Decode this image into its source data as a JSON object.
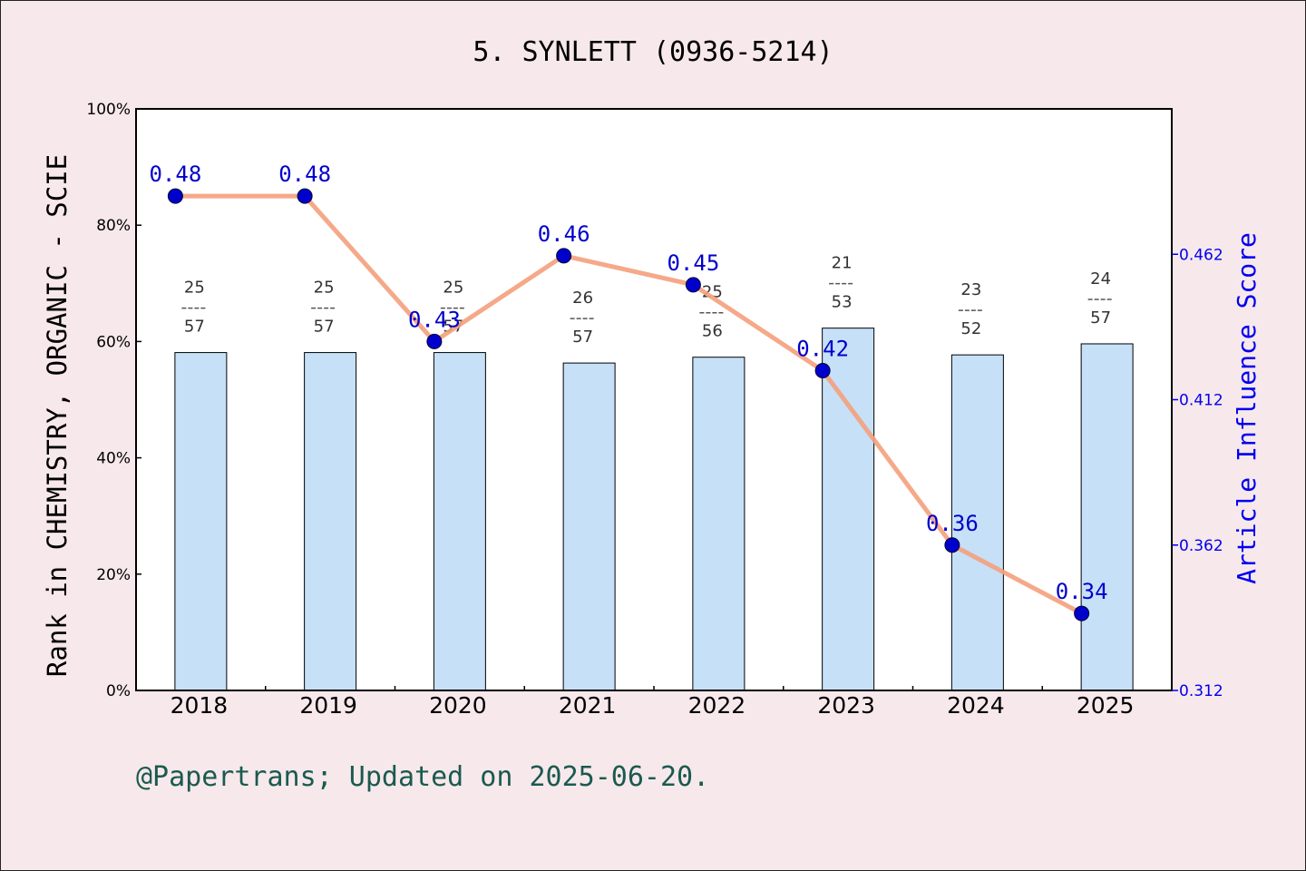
{
  "chart_data": {
    "type": "bar",
    "title": "5. SYNLETT (0936-5214)",
    "ylabel": "Rank in CHEMISTRY, ORGANIC - SCIE",
    "y2label": "Article Influence Score",
    "categories": [
      "2018",
      "2019",
      "2020",
      "2021",
      "2022",
      "2023",
      "2024",
      "2025"
    ],
    "ylim": [
      0,
      100
    ],
    "yticks": [
      "0%",
      "20%",
      "40%",
      "60%",
      "80%",
      "100%"
    ],
    "y2lim": [
      0.312,
      0.512
    ],
    "y2ticks": [
      "0.312",
      "0.362",
      "0.412",
      "0.462"
    ],
    "series": [
      {
        "type": "bar",
        "values": [
          58.1,
          58.1,
          58.1,
          56.3,
          57.3,
          62.3,
          57.7,
          59.6
        ],
        "rank": [
          "25",
          "25",
          "25",
          "26",
          "25",
          "21",
          "23",
          "24"
        ],
        "total": [
          "57",
          "57",
          "57",
          "57",
          "56",
          "53",
          "52",
          "57"
        ],
        "color": "#c6e0f8"
      },
      {
        "type": "line",
        "values": [
          0.48,
          0.48,
          0.43,
          0.46,
          0.45,
          0.42,
          0.36,
          0.34
        ],
        "plot_values": [
          0.482,
          0.482,
          0.432,
          0.4615,
          0.4515,
          0.422,
          0.362,
          0.3385
        ],
        "labels": [
          "0.48",
          "0.48",
          "0.43",
          "0.46",
          "0.45",
          "0.42",
          "0.36",
          "0.34"
        ],
        "line_color": "#f4a07c",
        "marker_color": "#0000cc"
      }
    ],
    "grid": false
  },
  "footer": "@Papertrans; Updated on 2025-06-20."
}
